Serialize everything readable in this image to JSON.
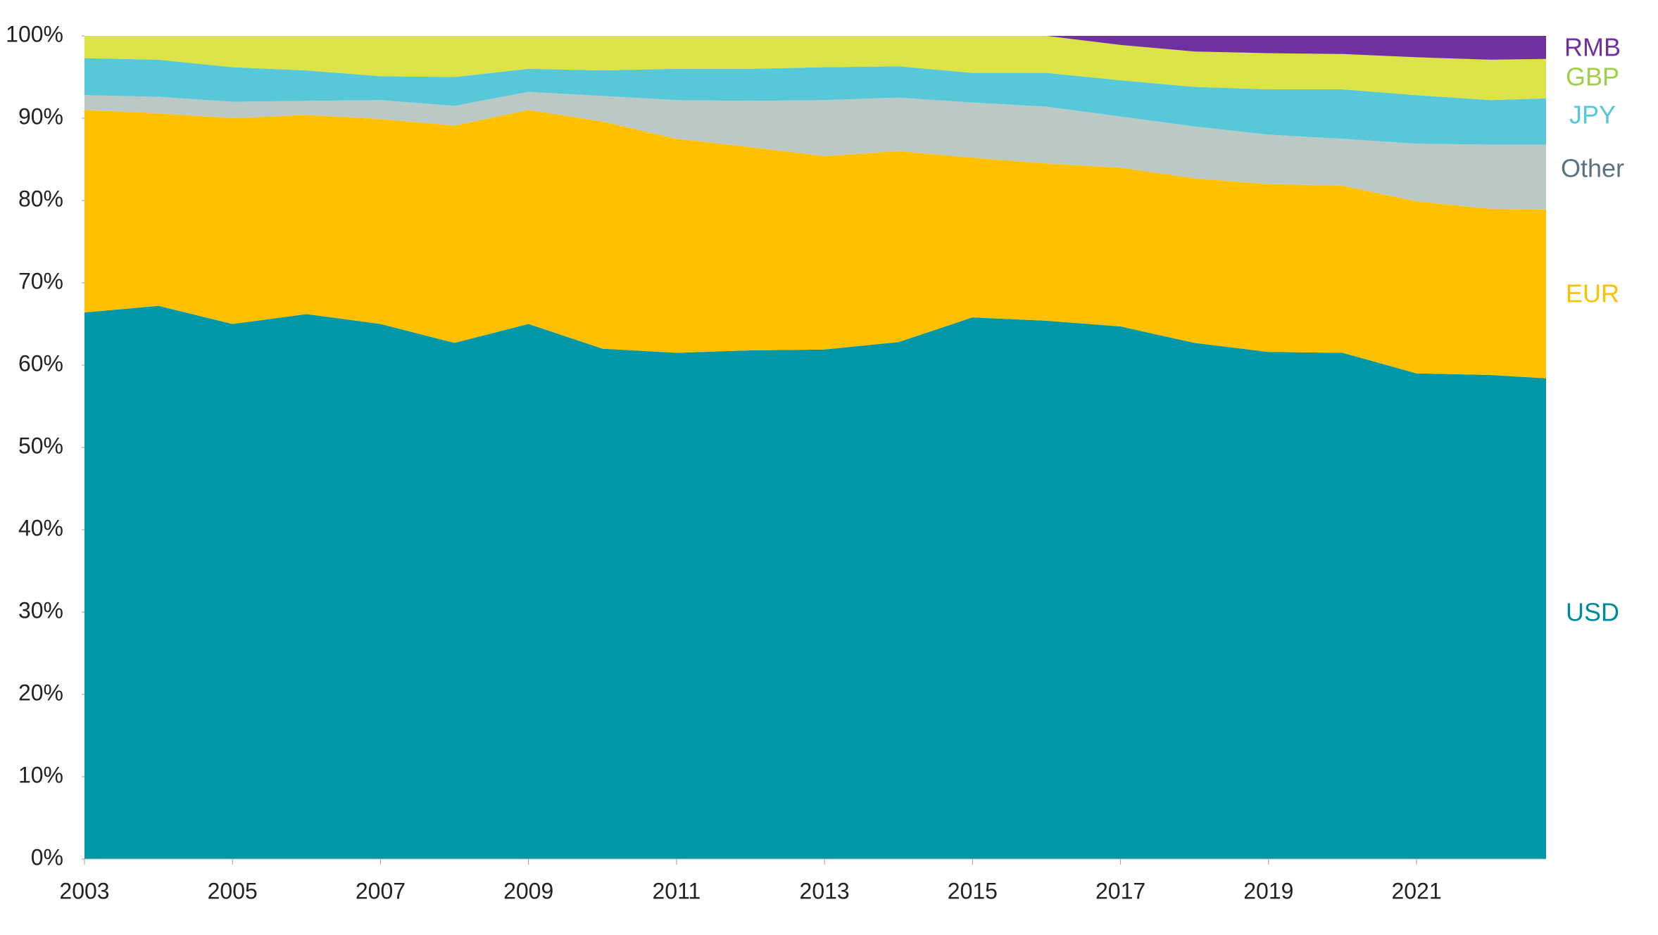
{
  "chart_data": {
    "type": "stacked_area",
    "x": [
      2003,
      2004,
      2005,
      2006,
      2007,
      2008,
      2009,
      2010,
      2011,
      2012,
      2013,
      2014,
      2015,
      2016,
      2017,
      2018,
      2019,
      2020,
      2021,
      2022,
      2022.75
    ],
    "xlim": [
      2003,
      2022.75
    ],
    "xticks": [
      2003,
      2005,
      2007,
      2009,
      2011,
      2013,
      2015,
      2017,
      2019,
      2021
    ],
    "ylim": [
      0,
      100
    ],
    "yticks": [
      {
        "value": 0,
        "label": "0%"
      },
      {
        "value": 10,
        "label": "10%"
      },
      {
        "value": 20,
        "label": "20%"
      },
      {
        "value": 30,
        "label": "30%"
      },
      {
        "value": 40,
        "label": "40%"
      },
      {
        "value": 50,
        "label": "50%"
      },
      {
        "value": 60,
        "label": "60%"
      },
      {
        "value": 70,
        "label": "70%"
      },
      {
        "value": 80,
        "label": "80%"
      },
      {
        "value": 90,
        "label": "90%"
      },
      {
        "value": 100,
        "label": "100%"
      }
    ],
    "grid": false,
    "series": [
      {
        "name": "USD",
        "color": "#0097a7",
        "label_color": "#00899a",
        "values": [
          66.4,
          67.2,
          65.0,
          66.2,
          65.0,
          62.7,
          65.0,
          62.0,
          61.5,
          61.8,
          61.9,
          62.8,
          65.8,
          65.4,
          64.7,
          62.7,
          61.6,
          61.5,
          59.0,
          58.8,
          58.4
        ]
      },
      {
        "name": "EUR",
        "color": "#ffc000",
        "label_color": "#ffc000",
        "values": [
          24.6,
          23.4,
          25.0,
          24.2,
          24.9,
          26.4,
          26.0,
          27.6,
          26.0,
          24.7,
          23.5,
          23.2,
          19.4,
          19.1,
          19.3,
          20.0,
          20.4,
          20.3,
          20.9,
          20.2,
          20.5
        ]
      },
      {
        "name": "Other",
        "color": "#bac9c5",
        "label_color": "#587284",
        "values": [
          1.8,
          2.0,
          2.0,
          1.7,
          2.3,
          2.4,
          2.2,
          3.1,
          4.7,
          5.6,
          6.8,
          6.5,
          6.7,
          6.9,
          6.2,
          6.3,
          6.0,
          5.7,
          7.0,
          7.8,
          7.9
        ]
      },
      {
        "name": "JPY",
        "color": "#56c8d8",
        "label_color": "#56c8d8",
        "values": [
          4.5,
          4.5,
          4.2,
          3.7,
          2.9,
          3.5,
          2.8,
          3.1,
          3.8,
          3.9,
          4.0,
          3.8,
          3.6,
          4.1,
          4.4,
          4.8,
          5.5,
          6.0,
          5.9,
          5.4,
          5.6
        ]
      },
      {
        "name": "GBP",
        "color": "#dce346",
        "label_color": "#9fcf48",
        "values": [
          2.7,
          2.9,
          3.8,
          4.2,
          4.9,
          5.0,
          4.0,
          4.2,
          4.0,
          4.0,
          3.8,
          3.7,
          4.5,
          4.5,
          4.3,
          4.3,
          4.4,
          4.3,
          4.6,
          4.9,
          4.8
        ]
      },
      {
        "name": "RMB",
        "color": "#7030a0",
        "label_color": "#7030a0",
        "values": [
          0,
          0,
          0,
          0,
          0,
          0,
          0,
          0,
          0,
          0,
          0,
          0,
          0,
          0,
          1.1,
          1.9,
          2.1,
          2.2,
          2.6,
          2.9,
          2.8
        ]
      }
    ]
  }
}
